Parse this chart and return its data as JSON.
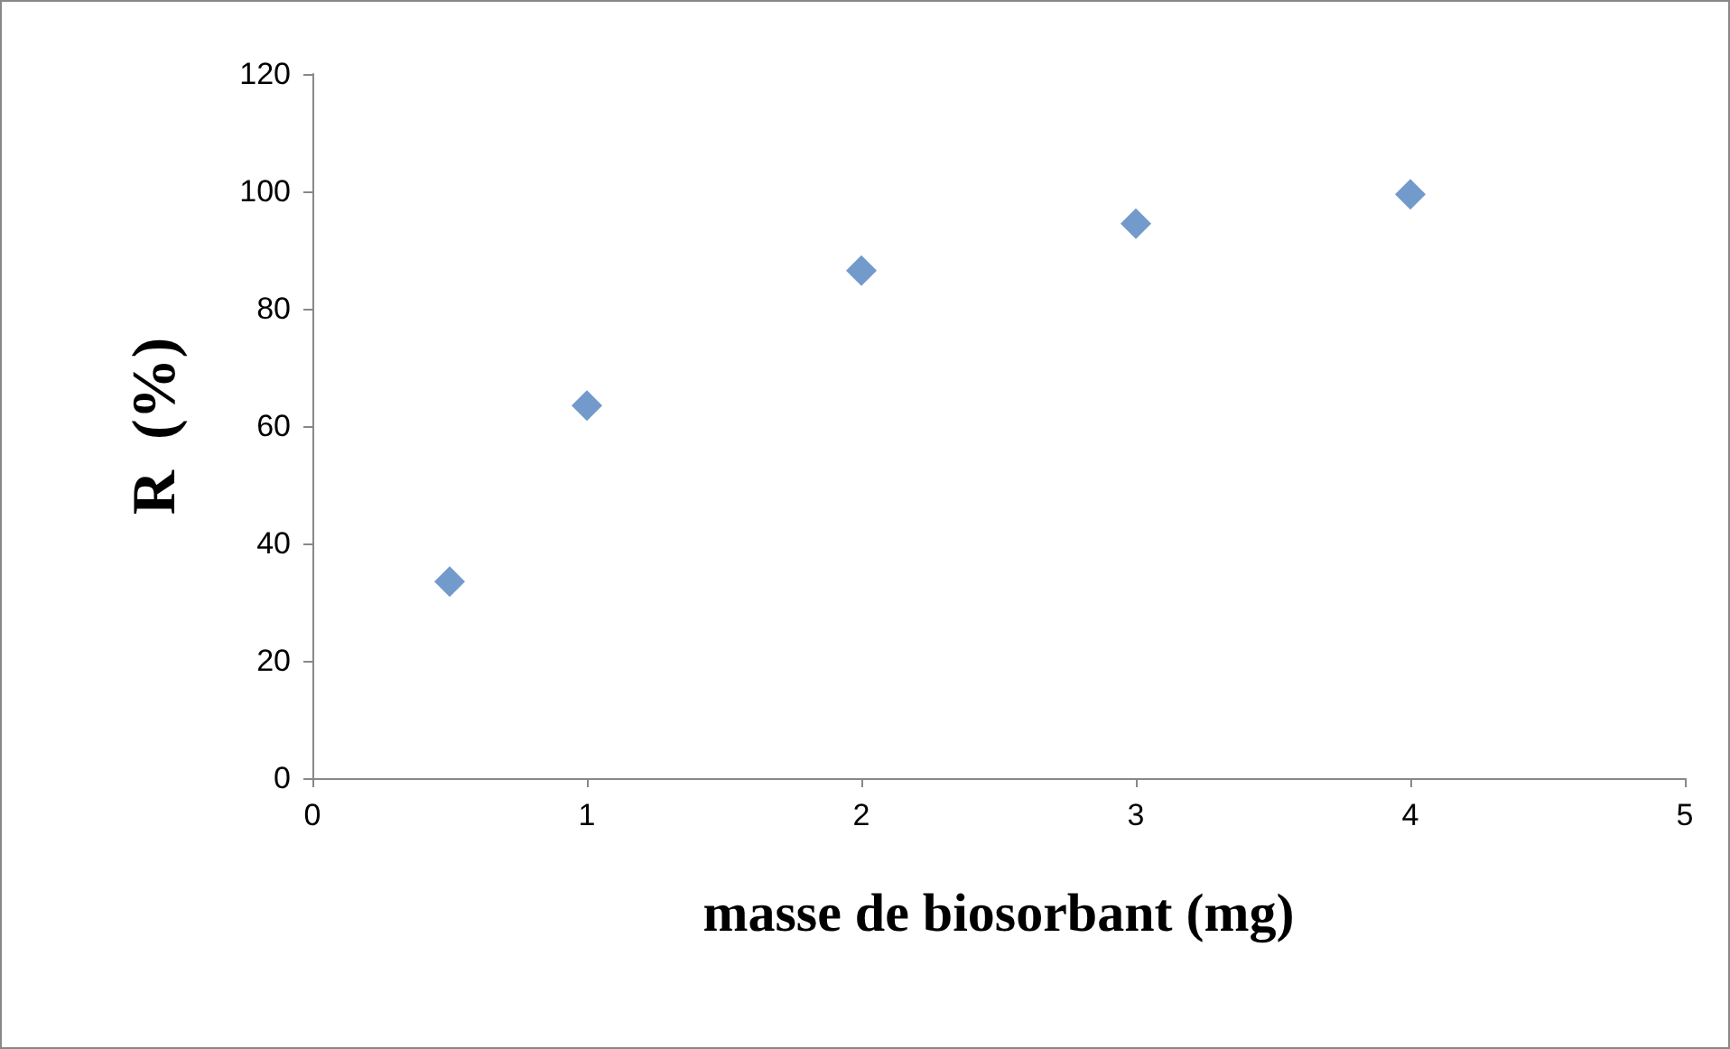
{
  "chart_data": {
    "type": "scatter",
    "xlabel": "masse de biosorbant (mg)",
    "ylabel": "R  (%)",
    "x": [
      0.5,
      1,
      2,
      3,
      4
    ],
    "series": [
      {
        "color": "#4f81bd",
        "values": [
          33.5,
          63.5,
          86.5,
          94.5,
          99.5
        ]
      }
    ],
    "xlim": [
      0,
      5
    ],
    "xticks": [
      0,
      1,
      2,
      3,
      4,
      5
    ],
    "ylim": [
      0,
      120
    ],
    "yticks": [
      0,
      20,
      40,
      60,
      80,
      100,
      120
    ],
    "grid": false,
    "marker": "diamond"
  }
}
